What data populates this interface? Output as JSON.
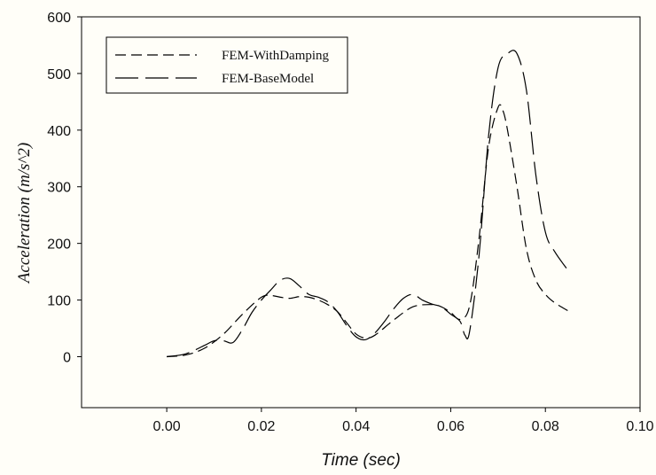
{
  "chart_data": {
    "type": "line",
    "title": "",
    "xlabel": "Time (sec)",
    "ylabel": "Acceleration (m/s^2)",
    "xlim": [
      -0.018,
      0.1
    ],
    "ylim": [
      -90,
      600
    ],
    "xticks": [
      0.0,
      0.02,
      0.04,
      0.06,
      0.08,
      0.1
    ],
    "xtick_labels": [
      "0.00",
      "0.02",
      "0.04",
      "0.06",
      "0.08",
      "0.10"
    ],
    "yticks": [
      0,
      100,
      200,
      300,
      400,
      500,
      600
    ],
    "ytick_labels": [
      "0",
      "100",
      "200",
      "300",
      "400",
      "500",
      "600"
    ],
    "grid": false,
    "legend_position": "top-left",
    "series": [
      {
        "name": "FEM-WithDamping",
        "dash": "short-dash",
        "color": "#000000",
        "x": [
          0.0,
          0.004,
          0.008,
          0.012,
          0.016,
          0.02,
          0.022,
          0.024,
          0.026,
          0.028,
          0.03,
          0.032,
          0.034,
          0.036,
          0.038,
          0.04,
          0.042,
          0.044,
          0.048,
          0.052,
          0.056,
          0.058,
          0.06,
          0.062,
          0.064,
          0.066,
          0.068,
          0.07,
          0.071,
          0.072,
          0.074,
          0.076,
          0.078,
          0.08,
          0.082,
          0.085
        ],
        "y": [
          0,
          3,
          15,
          40,
          75,
          105,
          108,
          105,
          103,
          106,
          105,
          100,
          92,
          80,
          60,
          40,
          33,
          38,
          65,
          88,
          92,
          88,
          78,
          66,
          90,
          210,
          370,
          440,
          435,
          400,
          300,
          190,
          135,
          110,
          95,
          80
        ]
      },
      {
        "name": "FEM-BaseModel",
        "dash": "long-dash",
        "color": "#000000",
        "x": [
          0.0,
          0.004,
          0.008,
          0.01,
          0.012,
          0.014,
          0.016,
          0.018,
          0.02,
          0.022,
          0.024,
          0.026,
          0.028,
          0.03,
          0.032,
          0.034,
          0.036,
          0.038,
          0.04,
          0.042,
          0.044,
          0.046,
          0.048,
          0.05,
          0.052,
          0.054,
          0.056,
          0.058,
          0.06,
          0.062,
          0.063,
          0.064,
          0.066,
          0.068,
          0.07,
          0.072,
          0.074,
          0.076,
          0.078,
          0.08,
          0.082,
          0.085
        ],
        "y": [
          0,
          5,
          20,
          28,
          28,
          25,
          48,
          78,
          100,
          118,
          135,
          138,
          125,
          110,
          105,
          97,
          80,
          55,
          35,
          30,
          42,
          62,
          85,
          103,
          110,
          100,
          93,
          88,
          75,
          62,
          38,
          45,
          180,
          390,
          510,
          535,
          535,
          470,
          320,
          220,
          185,
          150
        ]
      }
    ]
  }
}
